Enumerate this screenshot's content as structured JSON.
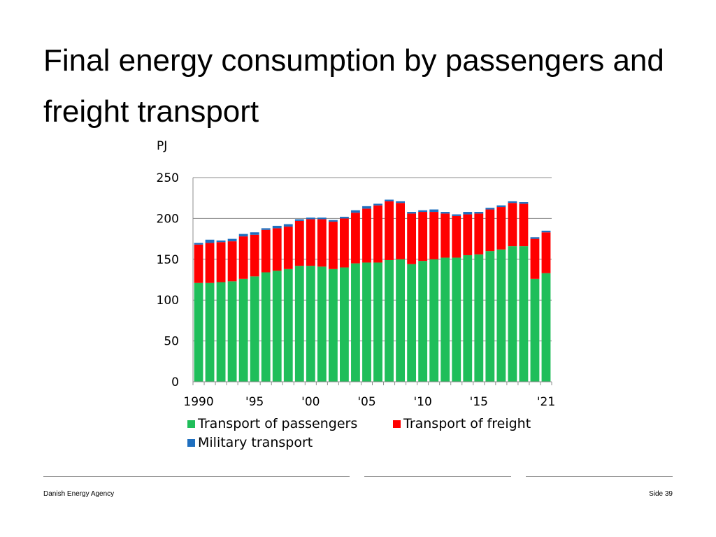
{
  "slide": {
    "title": "Final energy consumption by passengers and freight transport",
    "footer_left": "Danish Energy Agency",
    "footer_right": "Side 39"
  },
  "chart_data": {
    "type": "bar",
    "stacked": true,
    "title": "Final energy consumption by passengers and freight transport",
    "ylabel": "PJ",
    "xlabel": "",
    "ylim": [
      0,
      250
    ],
    "yticks": [
      0,
      50,
      100,
      150,
      200,
      250
    ],
    "grid": true,
    "legend_position": "bottom",
    "categories": [
      "1990",
      "1991",
      "1992",
      "1993",
      "1994",
      "1995",
      "1996",
      "1997",
      "1998",
      "1999",
      "2000",
      "2001",
      "2002",
      "2003",
      "2004",
      "2005",
      "2006",
      "2007",
      "2008",
      "2009",
      "2010",
      "2011",
      "2012",
      "2013",
      "2014",
      "2015",
      "2016",
      "2017",
      "2018",
      "2019",
      "2020",
      "2021"
    ],
    "xtick_labels": [
      {
        "index": 0,
        "label": "1990"
      },
      {
        "index": 5,
        "label": "'95"
      },
      {
        "index": 10,
        "label": "'00"
      },
      {
        "index": 15,
        "label": "'05"
      },
      {
        "index": 20,
        "label": "'10"
      },
      {
        "index": 25,
        "label": "'15"
      },
      {
        "index": 31,
        "label": "'21"
      }
    ],
    "series": [
      {
        "name": "Transport of passengers",
        "color": "#1fbe5a",
        "values": [
          121,
          121,
          122,
          123,
          126,
          129,
          134,
          136,
          138,
          142,
          142,
          141,
          138,
          140,
          145,
          146,
          146,
          149,
          150,
          144,
          148,
          150,
          152,
          152,
          155,
          156,
          160,
          162,
          166,
          166,
          126,
          133
        ]
      },
      {
        "name": "Transport of freight",
        "color": "#ff0000",
        "values": [
          47,
          49,
          49,
          49,
          52,
          51,
          52,
          52,
          52,
          55,
          57,
          58,
          58,
          60,
          62,
          66,
          70,
          72,
          69,
          62,
          60,
          58,
          54,
          51,
          50,
          50,
          51,
          52,
          53,
          52,
          49,
          50
        ]
      },
      {
        "name": "Military transport",
        "color": "#1f6fbf",
        "values": [
          2,
          4,
          2,
          3,
          3,
          3,
          2,
          3,
          3,
          2,
          2,
          2,
          2,
          2,
          3,
          3,
          2,
          2,
          2,
          2,
          2,
          3,
          2,
          2,
          3,
          2,
          2,
          2,
          2,
          2,
          2,
          2
        ]
      }
    ]
  }
}
